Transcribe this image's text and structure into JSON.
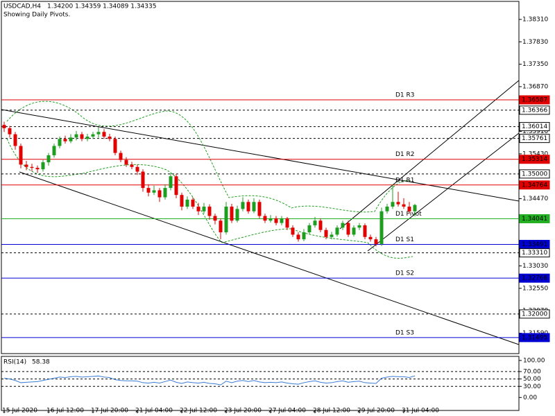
{
  "chart_data": {
    "type": "candlestick",
    "header": {
      "symbol": "USDCAD,H4",
      "ohlc": "1.34200 1.34359 1.34089 1.34335",
      "note": "Showing Daily Pivots."
    },
    "ylim": [
      1.31152,
      1.38696
    ],
    "yticks": [
      {
        "value": 1.3831,
        "label": "1.38310"
      },
      {
        "value": 1.3783,
        "label": "1.37830"
      },
      {
        "value": 1.3735,
        "label": "1.37350"
      },
      {
        "value": 1.3687,
        "label": "1.36870"
      },
      {
        "value": 1.3591,
        "label": "1.35910"
      },
      {
        "value": 1.3543,
        "label": "1.35430"
      },
      {
        "value": 1.3447,
        "label": "1.34470"
      },
      {
        "value": 1.3303,
        "label": "1.33030"
      },
      {
        "value": 1.3255,
        "label": "1.32550"
      },
      {
        "value": 1.3207,
        "label": "1.32070"
      },
      {
        "value": 1.3159,
        "label": "1.31590"
      }
    ],
    "levels": [
      {
        "name": "D1 R3",
        "value": 1.36587,
        "color": "#e00000",
        "style": "solid"
      },
      {
        "value": 1.36366,
        "color": "#000000",
        "style": "dashed"
      },
      {
        "value": 1.36014,
        "color": "#000000",
        "style": "dashed"
      },
      {
        "value": 1.35761,
        "color": "#000000",
        "style": "dashed"
      },
      {
        "name": "D1 R2",
        "value": 1.35314,
        "color": "#e00000",
        "style": "solid"
      },
      {
        "value": 1.35,
        "value_label": "1.35000",
        "color": "#000000",
        "style": "dashed"
      },
      {
        "name": "D1 R1",
        "value": 1.34764,
        "color": "#e00000",
        "style": "solid"
      },
      {
        "name": "D1 Pivot",
        "value": 1.34041,
        "color": "#22b022",
        "style": "solid"
      },
      {
        "name": "D1 S1",
        "value": 1.33491,
        "color": "#0000d0",
        "style": "solid"
      },
      {
        "value": 1.3331,
        "value_label": "1.33310",
        "color": "#000000",
        "style": "dashed"
      },
      {
        "name": "D1 S2",
        "value": 1.32768,
        "color": "#0000d0",
        "style": "solid"
      },
      {
        "value": 1.32,
        "value_label": "1.32000",
        "color": "#000000",
        "style": "dashed"
      },
      {
        "name": "D1 S3",
        "value": 1.31495,
        "color": "#0000d0",
        "style": "solid"
      }
    ],
    "bull_color": "#1e9e1e",
    "bear_color": "#e00000",
    "categories": [
      "15 Jul 2020",
      null,
      null,
      null,
      null,
      null,
      null,
      null,
      "16 Jul 12:00",
      null,
      null,
      null,
      null,
      null,
      null,
      null,
      "17 Jul 20:00",
      null,
      null,
      null,
      null,
      null,
      null,
      null,
      "21 Jul 04:00",
      null,
      null,
      null,
      null,
      null,
      null,
      null,
      "22 Jul 12:00",
      null,
      null,
      null,
      null,
      null,
      null,
      null,
      "23 Jul 20:00",
      null,
      null,
      null,
      null,
      null,
      null,
      null,
      "27 Jul 04:00",
      null,
      null,
      null,
      null,
      null,
      null,
      null,
      "28 Jul 12:00",
      null,
      null,
      null,
      null,
      null,
      null,
      null,
      "29 Jul 20:00",
      null,
      null,
      null,
      null,
      null,
      null,
      null,
      "31 Jul 04:00",
      null,
      null
    ],
    "candles": [
      [
        1.3605,
        1.3612,
        1.359,
        1.3598
      ],
      [
        1.3598,
        1.3603,
        1.3578,
        1.3585
      ],
      [
        1.3585,
        1.359,
        1.3552,
        1.356
      ],
      [
        1.356,
        1.3565,
        1.3512,
        1.352
      ],
      [
        1.352,
        1.3528,
        1.3508,
        1.3515
      ],
      [
        1.3515,
        1.3522,
        1.3506,
        1.3513
      ],
      [
        1.3513,
        1.3518,
        1.3502,
        1.351
      ],
      [
        1.351,
        1.353,
        1.3505,
        1.3525
      ],
      [
        1.3525,
        1.3545,
        1.3518,
        1.354
      ],
      [
        1.354,
        1.3565,
        1.3535,
        1.356
      ],
      [
        1.356,
        1.358,
        1.3555,
        1.3575
      ],
      [
        1.3575,
        1.3582,
        1.3565,
        1.357
      ],
      [
        1.357,
        1.3585,
        1.3566,
        1.3578
      ],
      [
        1.3578,
        1.3592,
        1.3572,
        1.3585
      ],
      [
        1.3585,
        1.359,
        1.357,
        1.3575
      ],
      [
        1.3575,
        1.3586,
        1.357,
        1.358
      ],
      [
        1.358,
        1.359,
        1.3575,
        1.3585
      ],
      [
        1.3585,
        1.36,
        1.3578,
        1.359
      ],
      [
        1.359,
        1.3596,
        1.3575,
        1.358
      ],
      [
        1.358,
        1.3586,
        1.357,
        1.3575
      ],
      [
        1.3575,
        1.358,
        1.354,
        1.3545
      ],
      [
        1.3545,
        1.355,
        1.3525,
        1.353
      ],
      [
        1.353,
        1.3536,
        1.3515,
        1.352
      ],
      [
        1.352,
        1.3526,
        1.351,
        1.3515
      ],
      [
        1.3515,
        1.352,
        1.3498,
        1.3505
      ],
      [
        1.3505,
        1.351,
        1.3462,
        1.347
      ],
      [
        1.347,
        1.3478,
        1.3452,
        1.346
      ],
      [
        1.346,
        1.3475,
        1.3455,
        1.3465
      ],
      [
        1.3465,
        1.347,
        1.344,
        1.345
      ],
      [
        1.345,
        1.3478,
        1.3445,
        1.347
      ],
      [
        1.347,
        1.3502,
        1.3465,
        1.3495
      ],
      [
        1.3495,
        1.35,
        1.3448,
        1.3455
      ],
      [
        1.3455,
        1.346,
        1.3422,
        1.343
      ],
      [
        1.343,
        1.3452,
        1.3425,
        1.3445
      ],
      [
        1.3445,
        1.345,
        1.3425,
        1.343
      ],
      [
        1.343,
        1.3438,
        1.3412,
        1.342
      ],
      [
        1.342,
        1.3438,
        1.3415,
        1.343
      ],
      [
        1.343,
        1.3435,
        1.3402,
        1.341
      ],
      [
        1.341,
        1.3415,
        1.3392,
        1.34
      ],
      [
        1.34,
        1.3405,
        1.336,
        1.3375
      ],
      [
        1.3375,
        1.344,
        1.337,
        1.343
      ],
      [
        1.343,
        1.3436,
        1.3395,
        1.34
      ],
      [
        1.34,
        1.3432,
        1.3396,
        1.3425
      ],
      [
        1.3425,
        1.345,
        1.342,
        1.344
      ],
      [
        1.344,
        1.3445,
        1.3415,
        1.342
      ],
      [
        1.342,
        1.3448,
        1.3416,
        1.344
      ],
      [
        1.344,
        1.3445,
        1.3405,
        1.341
      ],
      [
        1.341,
        1.3415,
        1.3395,
        1.34
      ],
      [
        1.34,
        1.3412,
        1.3396,
        1.3405
      ],
      [
        1.3405,
        1.341,
        1.339,
        1.3395
      ],
      [
        1.3395,
        1.341,
        1.339,
        1.3405
      ],
      [
        1.3405,
        1.3408,
        1.338,
        1.3385
      ],
      [
        1.3385,
        1.339,
        1.3365,
        1.337
      ],
      [
        1.337,
        1.3375,
        1.3355,
        1.336
      ],
      [
        1.336,
        1.3382,
        1.3356,
        1.3375
      ],
      [
        1.3375,
        1.3395,
        1.337,
        1.339
      ],
      [
        1.339,
        1.3408,
        1.3385,
        1.34
      ],
      [
        1.34,
        1.3405,
        1.3375,
        1.338
      ],
      [
        1.338,
        1.3385,
        1.336,
        1.3365
      ],
      [
        1.3365,
        1.3376,
        1.336,
        1.337
      ],
      [
        1.337,
        1.339,
        1.3366,
        1.3385
      ],
      [
        1.3385,
        1.34,
        1.338,
        1.3395
      ],
      [
        1.3395,
        1.34,
        1.3365,
        1.337
      ],
      [
        1.337,
        1.339,
        1.3366,
        1.3385
      ],
      [
        1.3385,
        1.3395,
        1.338,
        1.339
      ],
      [
        1.339,
        1.3394,
        1.336,
        1.3365
      ],
      [
        1.3365,
        1.337,
        1.3355,
        1.336
      ],
      [
        1.336,
        1.3365,
        1.3345,
        1.335
      ],
      [
        1.335,
        1.3428,
        1.3346,
        1.342
      ],
      [
        1.342,
        1.3436,
        1.3415,
        1.343
      ],
      [
        1.343,
        1.3478,
        1.3425,
        1.344
      ],
      [
        1.344,
        1.3462,
        1.343,
        1.3435
      ],
      [
        1.3435,
        1.3448,
        1.3425,
        1.343
      ],
      [
        1.343,
        1.344,
        1.3415,
        1.342
      ],
      [
        1.342,
        1.34359,
        1.34089,
        1.34335
      ]
    ],
    "rsi": {
      "title": "RSI(14)",
      "color": "#3a7bd5",
      "ylim": [
        -35,
        111
      ],
      "yticks": [
        {
          "value": 100,
          "label": "100.00"
        },
        {
          "value": 70,
          "label": "70.00"
        },
        {
          "value": 50,
          "label": "50.00"
        },
        {
          "value": 30,
          "label": "30.00"
        },
        {
          "value": 0,
          "label": "0.00"
        }
      ],
      "levels": [
        70,
        50,
        30
      ],
      "values": [
        52,
        50,
        46,
        40,
        41,
        42,
        43,
        46,
        49,
        52,
        55,
        54,
        56,
        57,
        55,
        56,
        57,
        58,
        55,
        54,
        48,
        46,
        45,
        45,
        44,
        40,
        39,
        41,
        39,
        43,
        47,
        41,
        38,
        42,
        40,
        39,
        41,
        38,
        37,
        34,
        44,
        40,
        44,
        46,
        43,
        46,
        42,
        40,
        41,
        40,
        42,
        39,
        37,
        36,
        40,
        43,
        45,
        41,
        39,
        40,
        43,
        45,
        41,
        43,
        44,
        40,
        39,
        38,
        52,
        55,
        57,
        56,
        56,
        54,
        58.38
      ]
    }
  }
}
